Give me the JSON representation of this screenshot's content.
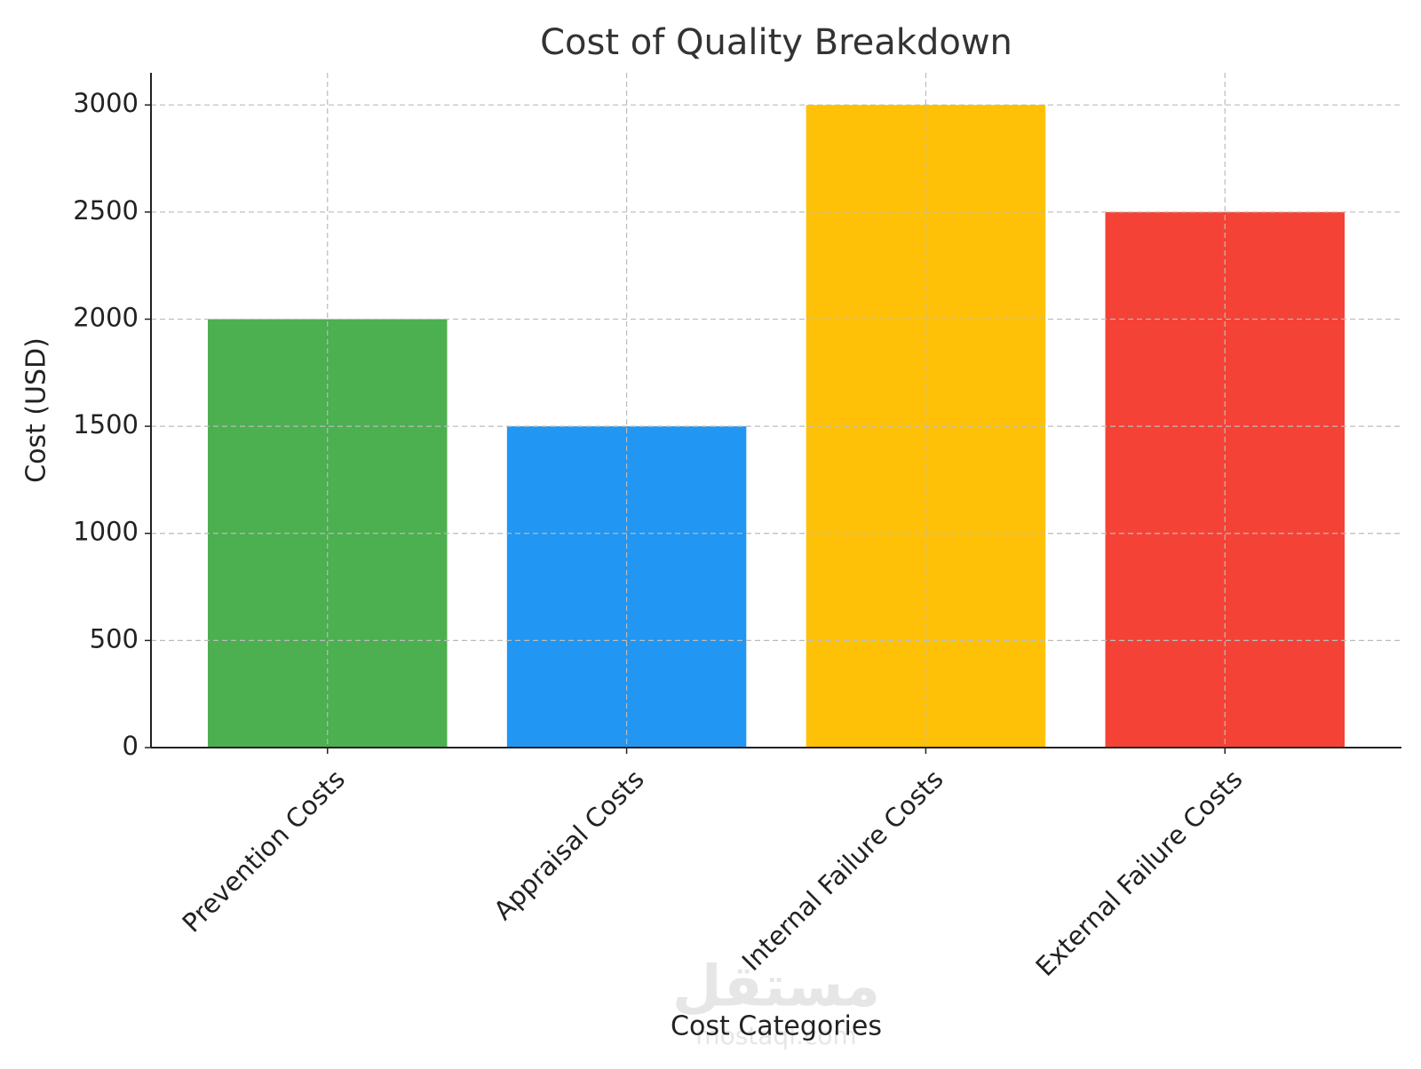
{
  "chart_data": {
    "type": "bar",
    "title": "Cost of Quality Breakdown",
    "x_label": "Cost Categories",
    "y_label": "Cost (USD)",
    "categories": [
      "Prevention Costs",
      "Appraisal Costs",
      "Internal Failure Costs",
      "External Failure Costs"
    ],
    "values": [
      2000,
      1500,
      3000,
      2500
    ],
    "colors": [
      "#4caf50",
      "#2196f3",
      "#ffc107",
      "#f44336"
    ],
    "ylim": [
      0,
      3150
    ],
    "yticks": [
      0,
      500,
      1000,
      1500,
      2000,
      2500,
      3000
    ],
    "grid": true,
    "watermark": {
      "logo": "مستقل",
      "site": "mostaql.com"
    }
  }
}
